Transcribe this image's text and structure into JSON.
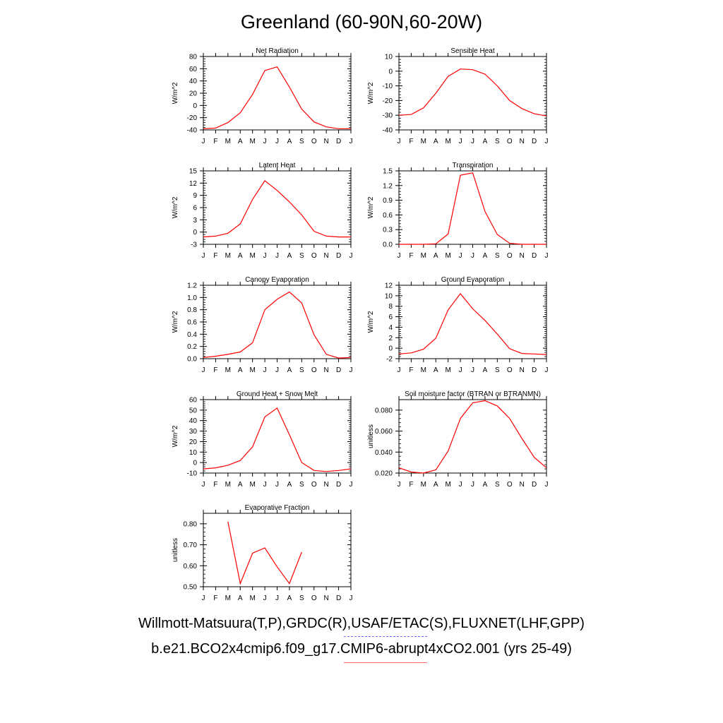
{
  "title": "Greenland (60-90N,60-20W)",
  "footer": {
    "obs_sources": "Willmott-Matsuura(T,P),GRDC(R),USAF/ETAC(S),FLUXNET(LHF,GPP)",
    "model_case": "b.e21.BCO2x4cmip6.f09_g17.CMIP6-abrupt4xCO2.001 (yrs 25-49)"
  },
  "colors": {
    "model_line": "#ff0000",
    "obs_line": "#6a6aff",
    "axis": "#000000"
  },
  "chart_data": [
    {
      "type": "line",
      "title": "Net Radiation",
      "ylabel": "W/m^2",
      "categories": [
        "J",
        "F",
        "M",
        "A",
        "M",
        "J",
        "J",
        "A",
        "S",
        "O",
        "N",
        "D",
        "J"
      ],
      "ylim": [
        -40,
        80
      ],
      "yticks": [
        -40,
        -20,
        0,
        20,
        40,
        60,
        80
      ],
      "ytick_labels": [
        "-40",
        "-20",
        "0",
        "20",
        "40",
        "60",
        "80"
      ],
      "series": [
        {
          "values": [
            -38,
            -37,
            -28,
            -12,
            18,
            57,
            63,
            30,
            -6,
            -27,
            -35,
            -38,
            -38
          ]
        }
      ]
    },
    {
      "type": "line",
      "title": "Sensible Heat",
      "ylabel": "W/m^2",
      "categories": [
        "J",
        "F",
        "M",
        "A",
        "M",
        "J",
        "J",
        "A",
        "S",
        "O",
        "N",
        "D",
        "J"
      ],
      "ylim": [
        -40,
        10
      ],
      "yticks": [
        -40,
        -30,
        -20,
        -10,
        0,
        10
      ],
      "ytick_labels": [
        "-40",
        "-30",
        "-20",
        "-10",
        "0",
        "10"
      ],
      "series": [
        {
          "values": [
            -30,
            -29.5,
            -25,
            -15,
            -3.5,
            1.5,
            1,
            -2,
            -10,
            -20,
            -25.5,
            -29,
            -30.5
          ]
        }
      ]
    },
    {
      "type": "line",
      "title": "Latent Heat",
      "ylabel": "W/m^2",
      "categories": [
        "J",
        "F",
        "M",
        "A",
        "M",
        "J",
        "J",
        "A",
        "S",
        "O",
        "N",
        "D",
        "J"
      ],
      "ylim": [
        -3,
        15
      ],
      "yticks": [
        -3,
        0,
        3,
        6,
        9,
        12,
        15
      ],
      "ytick_labels": [
        "-3",
        "0",
        "3",
        "6",
        "9",
        "12",
        "15"
      ],
      "series": [
        {
          "values": [
            -1.2,
            -1,
            -0.3,
            2,
            8,
            12.6,
            10.2,
            7.4,
            4.2,
            0.2,
            -1,
            -1.2,
            -1.2
          ]
        }
      ]
    },
    {
      "type": "line",
      "title": "Transpiration",
      "ylabel": "W/m^2",
      "categories": [
        "J",
        "F",
        "M",
        "A",
        "M",
        "J",
        "J",
        "A",
        "S",
        "O",
        "N",
        "D",
        "J"
      ],
      "ylim": [
        0,
        1.5
      ],
      "yticks": [
        0,
        0.3,
        0.6,
        0.9,
        1.2,
        1.5
      ],
      "ytick_labels": [
        "0.0",
        "0.3",
        "0.6",
        "0.9",
        "1.2",
        "1.5"
      ],
      "series": [
        {
          "values": [
            0,
            0,
            0,
            0.01,
            0.21,
            1.41,
            1.46,
            0.67,
            0.2,
            0.02,
            0,
            0,
            0
          ]
        }
      ]
    },
    {
      "type": "line",
      "title": "Canopy Evaporation",
      "ylabel": "W/m^2",
      "categories": [
        "J",
        "F",
        "M",
        "A",
        "M",
        "J",
        "J",
        "A",
        "S",
        "O",
        "N",
        "D",
        "J"
      ],
      "ylim": [
        0,
        1.2
      ],
      "yticks": [
        0,
        0.2,
        0.4,
        0.6,
        0.8,
        1.0,
        1.2
      ],
      "ytick_labels": [
        "0.0",
        "0.2",
        "0.4",
        "0.6",
        "0.8",
        "1.0",
        "1.2"
      ],
      "series": [
        {
          "values": [
            0.02,
            0.04,
            0.07,
            0.11,
            0.26,
            0.8,
            0.97,
            1.09,
            0.91,
            0.39,
            0.07,
            0.01,
            0.02
          ]
        }
      ]
    },
    {
      "type": "line",
      "title": "Ground Evaporation",
      "ylabel": "W/m^2",
      "categories": [
        "J",
        "F",
        "M",
        "A",
        "M",
        "J",
        "J",
        "A",
        "S",
        "O",
        "N",
        "D",
        "J"
      ],
      "ylim": [
        -2,
        12
      ],
      "yticks": [
        -2,
        0,
        2,
        4,
        6,
        8,
        10,
        12
      ],
      "ytick_labels": [
        "-2",
        "0",
        "2",
        "4",
        "6",
        "8",
        "10",
        "12"
      ],
      "series": [
        {
          "values": [
            -1.1,
            -0.9,
            -0.2,
            1.9,
            7.3,
            10.4,
            7.5,
            5.3,
            2.7,
            -0.1,
            -1,
            -1.1,
            -1.2
          ]
        }
      ]
    },
    {
      "type": "line",
      "title": "Ground Heat + Snow Melt",
      "ylabel": "W/m^2",
      "categories": [
        "J",
        "F",
        "M",
        "A",
        "M",
        "J",
        "J",
        "A",
        "S",
        "O",
        "N",
        "D",
        "J"
      ],
      "ylim": [
        -10,
        60
      ],
      "yticks": [
        -10,
        0,
        10,
        20,
        30,
        40,
        50,
        60
      ],
      "ytick_labels": [
        "-10",
        "0",
        "10",
        "20",
        "30",
        "40",
        "50",
        "60"
      ],
      "series": [
        {
          "values": [
            -6,
            -5,
            -2.5,
            2,
            15,
            43.5,
            52,
            26.5,
            0,
            -7.5,
            -8.5,
            -7.5,
            -6
          ]
        }
      ]
    },
    {
      "type": "line",
      "title": "Soil moisture factor (BTRAN or BTRANMN)",
      "ylabel": "unitless",
      "categories": [
        "J",
        "F",
        "M",
        "A",
        "M",
        "J",
        "J",
        "A",
        "S",
        "O",
        "N",
        "D",
        "J"
      ],
      "ylim": [
        0.02,
        0.09
      ],
      "yticks": [
        0.02,
        0.04,
        0.06,
        0.08
      ],
      "ytick_labels": [
        "0.020",
        "0.040",
        "0.060",
        "0.080"
      ],
      "series": [
        {
          "values": [
            0.025,
            0.021,
            0.02,
            0.023,
            0.041,
            0.072,
            0.087,
            0.089,
            0.084,
            0.072,
            0.053,
            0.035,
            0.025
          ]
        }
      ]
    },
    {
      "type": "line",
      "title": "Evaporative Fraction",
      "ylabel": "unitless",
      "categories": [
        "J",
        "F",
        "M",
        "A",
        "M",
        "J",
        "J",
        "A",
        "S",
        "O",
        "N",
        "D",
        "J"
      ],
      "ylim": [
        0.5,
        0.85
      ],
      "yticks": [
        0.5,
        0.6,
        0.7,
        0.8
      ],
      "ytick_labels": [
        "0.50",
        "0.60",
        "0.70",
        "0.80"
      ],
      "series": [
        {
          "values": [
            null,
            null,
            0.81,
            0.515,
            0.66,
            0.685,
            0.595,
            0.515,
            0.665,
            null,
            null,
            null,
            null
          ]
        }
      ]
    }
  ]
}
